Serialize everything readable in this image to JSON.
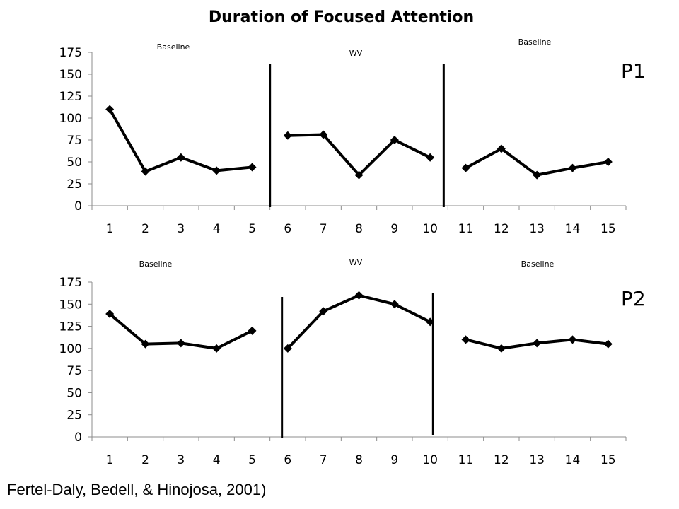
{
  "title": "Duration of Focused Attention",
  "citation": "Fertel-Daly, Bedell, & Hinojosa, 2001)",
  "chart_data": [
    {
      "type": "line",
      "panel_label": "P1",
      "x": [
        1,
        2,
        3,
        4,
        5,
        6,
        7,
        8,
        9,
        10,
        11,
        12,
        13,
        14,
        15
      ],
      "x_tick_labels": [
        "1",
        "2",
        "3",
        "4",
        "5",
        "6",
        "7",
        "8",
        "9",
        "10",
        "11",
        "12",
        "13",
        "14",
        "15"
      ],
      "ylim": [
        0,
        175
      ],
      "y_ticks": [
        0,
        25,
        50,
        75,
        100,
        125,
        150,
        175
      ],
      "y_tick_labels": [
        "0",
        "25",
        "50",
        "75",
        "100",
        "125",
        "150",
        "175"
      ],
      "segments": [
        {
          "phase": "Baseline",
          "x": [
            1,
            2,
            3,
            4,
            5
          ],
          "values": [
            110,
            39,
            55,
            40,
            44
          ]
        },
        {
          "phase": "WV",
          "x": [
            6,
            7,
            8,
            9,
            10
          ],
          "values": [
            80,
            81,
            35,
            75,
            55
          ]
        },
        {
          "phase": "Baseline",
          "x": [
            11,
            12,
            13,
            14,
            15
          ],
          "values": [
            43,
            65,
            35,
            43,
            50
          ]
        }
      ],
      "phase_labels": [
        "Baseline",
        "WV",
        "Baseline"
      ],
      "phase_change_after": [
        5,
        10
      ],
      "line_color": "#000000",
      "marker": "diamond",
      "grid": false
    },
    {
      "type": "line",
      "panel_label": "P2",
      "x": [
        1,
        2,
        3,
        4,
        5,
        6,
        7,
        8,
        9,
        10,
        11,
        12,
        13,
        14,
        15
      ],
      "x_tick_labels": [
        "1",
        "2",
        "3",
        "4",
        "5",
        "6",
        "7",
        "8",
        "9",
        "10",
        "11",
        "12",
        "13",
        "14",
        "15"
      ],
      "ylim": [
        0,
        175
      ],
      "y_ticks": [
        0,
        25,
        50,
        75,
        100,
        125,
        150,
        175
      ],
      "y_tick_labels": [
        "0",
        "25",
        "50",
        "75",
        "100",
        "125",
        "150",
        "175"
      ],
      "segments": [
        {
          "phase": "Baseline",
          "x": [
            1,
            2,
            3,
            4,
            5
          ],
          "values": [
            139,
            105,
            106,
            100,
            120
          ]
        },
        {
          "phase": "WV",
          "x": [
            6,
            7,
            8,
            9,
            10
          ],
          "values": [
            100,
            142,
            160,
            150,
            130
          ]
        },
        {
          "phase": "Baseline",
          "x": [
            11,
            12,
            13,
            14,
            15
          ],
          "values": [
            110,
            100,
            106,
            110,
            105
          ]
        }
      ],
      "phase_labels": [
        "Baseline",
        "WV",
        "Baseline"
      ],
      "phase_change_after": [
        5,
        10
      ],
      "line_color": "#000000",
      "marker": "diamond",
      "grid": false
    }
  ]
}
